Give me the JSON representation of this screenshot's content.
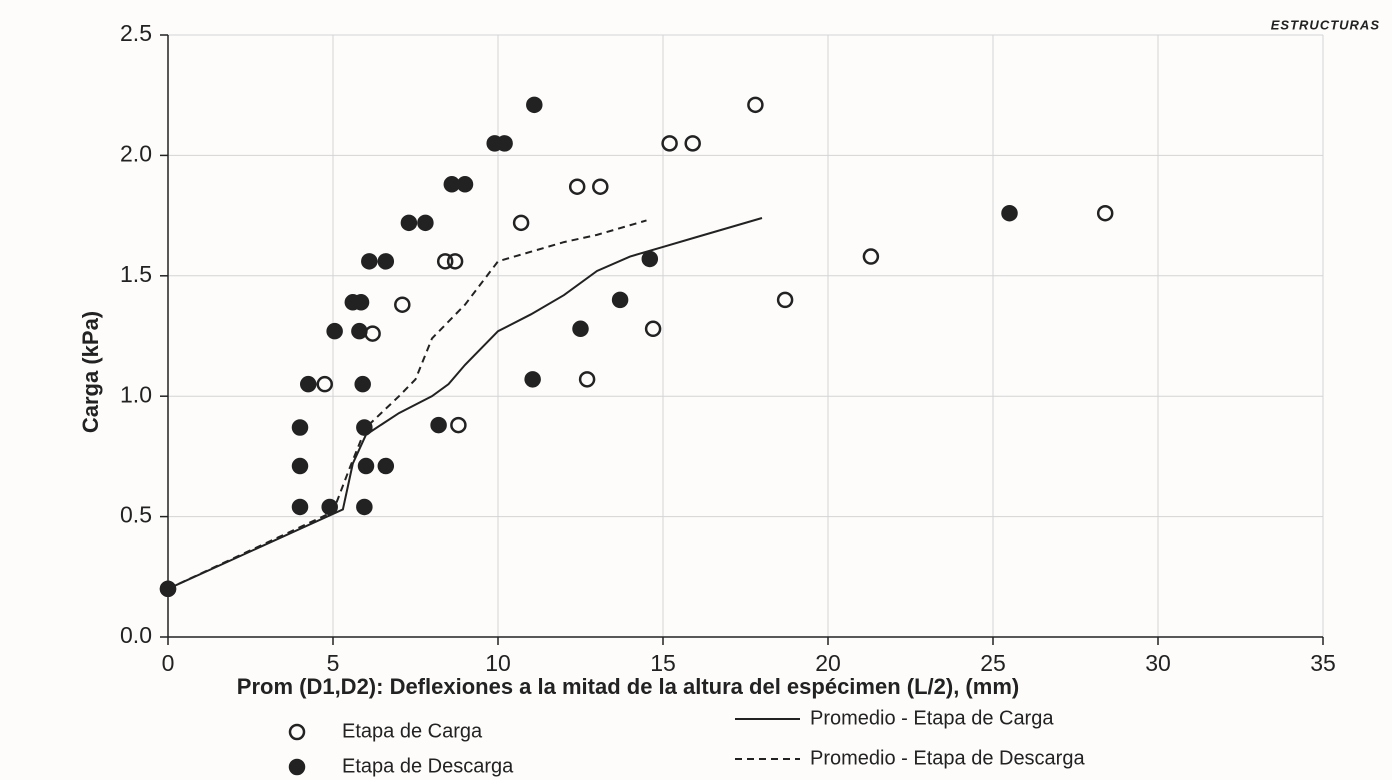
{
  "chart_data": {
    "type": "scatter",
    "corner_text": "ESTRUCTURAS",
    "x_label": "Prom (D1,D2): Deflexiones a la mitad de la altura del espécimen (L/2), (mm)",
    "y_label": "Carga (kPa)",
    "xlim": [
      0,
      35
    ],
    "xticks": [
      0,
      5,
      10,
      15,
      20,
      25,
      30,
      35
    ],
    "ylim": [
      0,
      2.5
    ],
    "yticks": [
      {
        "value": 0,
        "label": "0.0"
      },
      {
        "value": 0.5,
        "label": "0.5"
      },
      {
        "value": 1,
        "label": "1.0"
      },
      {
        "value": 1.5,
        "label": "1.5"
      },
      {
        "value": 2,
        "label": "2.0"
      },
      {
        "value": 2.5,
        "label": "2.5"
      }
    ],
    "grid": true,
    "series": [
      {
        "name": "Etapa de Carga",
        "color": "#222222",
        "style": "open",
        "x": [
          0,
          4.75,
          6.2,
          7.1,
          8.4,
          8.7,
          8.8,
          10.7,
          12.4,
          13.1,
          12.7,
          15.2,
          15.9,
          14.7,
          17.8,
          18.7,
          21.3,
          28.4
        ],
        "values": [
          0.2,
          1.05,
          1.26,
          1.38,
          1.56,
          1.56,
          0.88,
          1.72,
          1.87,
          1.87,
          1.07,
          2.05,
          2.05,
          1.28,
          2.21,
          1.4,
          1.58,
          1.76
        ]
      },
      {
        "name": "Etapa de Descarga",
        "color": "#222222",
        "style": "filled",
        "x": [
          0,
          4.0,
          4.0,
          4.0,
          4.25,
          4.9,
          5.05,
          5.6,
          5.85,
          5.8,
          5.9,
          5.95,
          6.0,
          5.95,
          6.1,
          6.6,
          6.6,
          7.3,
          7.8,
          8.2,
          8.6,
          9.0,
          9.9,
          10.2,
          11.1,
          11.05,
          12.5,
          13.7,
          14.6,
          25.5
        ],
        "values": [
          0.2,
          0.54,
          0.71,
          0.87,
          1.05,
          0.54,
          1.27,
          1.39,
          1.39,
          1.27,
          1.05,
          0.87,
          0.71,
          0.54,
          1.56,
          1.56,
          0.71,
          1.72,
          1.72,
          0.88,
          1.88,
          1.88,
          2.05,
          2.05,
          2.21,
          1.07,
          1.28,
          1.4,
          1.57,
          1.76
        ]
      },
      {
        "name": "Promedio - Etapa de Carga",
        "color": "#222222",
        "style": "solid",
        "x": [
          0,
          5.3,
          5.6,
          6,
          7,
          8,
          8.5,
          9,
          10,
          11,
          12,
          13,
          14,
          15,
          16,
          17,
          18
        ],
        "values": [
          0.2,
          0.53,
          0.72,
          0.84,
          0.93,
          1.0,
          1.05,
          1.13,
          1.27,
          1.34,
          1.42,
          1.52,
          1.58,
          1.62,
          1.66,
          1.7,
          1.74
        ]
      },
      {
        "name": "Promedio - Etapa de Descarga",
        "color": "#222222",
        "style": "dashed",
        "x": [
          0,
          5,
          5.5,
          6,
          7,
          7.5,
          8,
          9,
          10,
          11,
          12,
          13,
          14,
          14.5
        ],
        "values": [
          0.2,
          0.52,
          0.7,
          0.87,
          1.0,
          1.07,
          1.24,
          1.38,
          1.56,
          1.6,
          1.64,
          1.67,
          1.71,
          1.73
        ]
      }
    ]
  }
}
